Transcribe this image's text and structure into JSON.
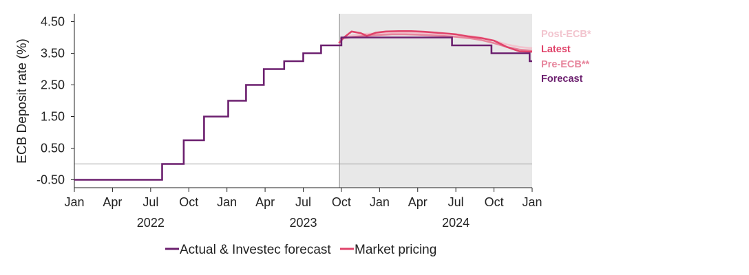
{
  "chart_data": {
    "type": "line",
    "title": "",
    "ylabel": "ECB Deposit rate (%)",
    "xlabel": "",
    "ylim": [
      -0.75,
      4.75
    ],
    "xlim": [
      "2022-01",
      "2025-01"
    ],
    "y_ticks": [
      "4.50",
      "3.50",
      "2.50",
      "1.50",
      "0.50",
      "-0.50"
    ],
    "x_ticks": [
      "Jan",
      "Apr",
      "Jul",
      "Oct",
      "Jan",
      "Apr",
      "Jul",
      "Oct",
      "Jan",
      "Apr",
      "Jul",
      "Oct",
      "Jan"
    ],
    "x_tick_months": [
      0,
      3,
      6,
      9,
      12,
      15,
      18,
      21,
      24,
      27,
      30,
      33,
      36
    ],
    "year_labels": [
      {
        "label": "2022",
        "month": 6
      },
      {
        "label": "2023",
        "month": 18
      },
      {
        "label": "2024",
        "month": 30
      }
    ],
    "shaded_region": {
      "start_month": 20.85,
      "end_month": 36,
      "label": "forecast period"
    },
    "zero_line": 0,
    "series": [
      {
        "name": "Actual & Investec forecast",
        "color": "#6b1f6e",
        "style": "step",
        "points": [
          [
            0,
            -0.5
          ],
          [
            6.9,
            -0.5
          ],
          [
            6.9,
            0
          ],
          [
            8.6,
            0
          ],
          [
            8.6,
            0.75
          ],
          [
            10.2,
            0.75
          ],
          [
            10.2,
            1.5
          ],
          [
            12.1,
            1.5
          ],
          [
            12.1,
            2.0
          ],
          [
            13.5,
            2.0
          ],
          [
            13.5,
            2.5
          ],
          [
            14.9,
            2.5
          ],
          [
            14.9,
            3.0
          ],
          [
            16.5,
            3.0
          ],
          [
            16.5,
            3.25
          ],
          [
            18.0,
            3.25
          ],
          [
            18.0,
            3.5
          ],
          [
            19.4,
            3.5
          ],
          [
            19.4,
            3.75
          ],
          [
            21.0,
            3.75
          ],
          [
            21.0,
            4.0
          ],
          [
            29.7,
            4.0
          ],
          [
            29.7,
            3.75
          ],
          [
            32.8,
            3.75
          ],
          [
            32.8,
            3.5
          ],
          [
            35.8,
            3.5
          ],
          [
            35.8,
            3.25
          ],
          [
            36.0,
            3.25
          ]
        ]
      },
      {
        "name": "Post-ECB*",
        "color": "#f2c4ce",
        "style": "line",
        "points": [
          [
            20.9,
            3.98
          ],
          [
            22,
            4.08
          ],
          [
            23,
            4.12
          ],
          [
            24,
            4.13
          ],
          [
            25,
            4.15
          ],
          [
            26,
            4.16
          ],
          [
            27,
            4.15
          ],
          [
            28,
            4.13
          ],
          [
            29,
            4.11
          ],
          [
            30,
            4.08
          ],
          [
            31,
            4.05
          ],
          [
            32,
            4.0
          ],
          [
            33,
            3.9
          ],
          [
            34,
            3.78
          ],
          [
            35,
            3.7
          ],
          [
            36,
            3.66
          ]
        ]
      },
      {
        "name": "Latest",
        "color": "#e0436a",
        "style": "line",
        "points": [
          [
            20.8,
            3.82
          ],
          [
            21.2,
            4.0
          ],
          [
            21.8,
            4.19
          ],
          [
            22.5,
            4.14
          ],
          [
            23,
            4.05
          ],
          [
            23.7,
            4.15
          ],
          [
            24.5,
            4.19
          ],
          [
            25.5,
            4.2
          ],
          [
            26.5,
            4.2
          ],
          [
            27.5,
            4.18
          ],
          [
            28.5,
            4.15
          ],
          [
            29.5,
            4.12
          ],
          [
            30,
            4.1
          ],
          [
            31,
            4.03
          ],
          [
            32,
            3.98
          ],
          [
            33,
            3.9
          ],
          [
            34,
            3.7
          ],
          [
            35,
            3.56
          ],
          [
            36,
            3.55
          ]
        ]
      },
      {
        "name": "Pre-ECB**",
        "color": "#e7869d",
        "style": "line",
        "points": [
          [
            20.9,
            3.96
          ],
          [
            22,
            4.02
          ],
          [
            23,
            4.06
          ],
          [
            24,
            4.08
          ],
          [
            25,
            4.1
          ],
          [
            26,
            4.1
          ],
          [
            27,
            4.09
          ],
          [
            28,
            4.07
          ],
          [
            29,
            4.05
          ],
          [
            30,
            4.02
          ],
          [
            31,
            3.98
          ],
          [
            32,
            3.92
          ],
          [
            33,
            3.82
          ],
          [
            34,
            3.7
          ],
          [
            35,
            3.62
          ],
          [
            36,
            3.58
          ]
        ]
      }
    ],
    "annotations": [
      {
        "text": "Post-ECB*",
        "color": "#f2c4ce"
      },
      {
        "text": "Latest",
        "color": "#e0436a"
      },
      {
        "text": "Pre-ECB**",
        "color": "#e7869d"
      },
      {
        "text": "Forecast",
        "color": "#6b1f6e"
      }
    ],
    "legend": [
      {
        "label": "Actual & Investec forecast",
        "color": "#6b1f6e"
      },
      {
        "label": "Market pricing",
        "color": "#e0436a"
      }
    ],
    "legend_position": "bottom"
  }
}
